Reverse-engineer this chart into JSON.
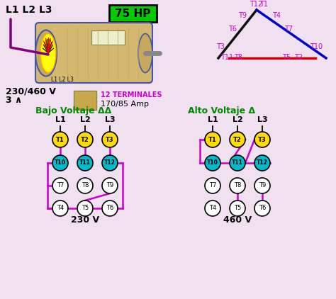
{
  "bg_color": "#f0e0f0",
  "title_box_color": "#00cc00",
  "title_text": "75 HP",
  "motor_label": "L1 L2 L3",
  "spec_line1": "230/460 V",
  "spec_line2": "3 ∧",
  "spec_line3": "12 TERMINALES",
  "spec_line4": "170/85 Amp",
  "bajo_title": "Bajo Voltaje ΔΔ",
  "alto_title": "Alto Voltaje Δ",
  "bajo_voltage": "230 V",
  "alto_voltage": "460 V",
  "magenta": "#cc00cc",
  "yellow": "#ffdd00",
  "cyan": "#00bbcc",
  "green_title": "#008800",
  "node_border": "#333333",
  "tri_black": "#111111",
  "tri_blue": "#0000cc",
  "tri_red": "#cc0000"
}
